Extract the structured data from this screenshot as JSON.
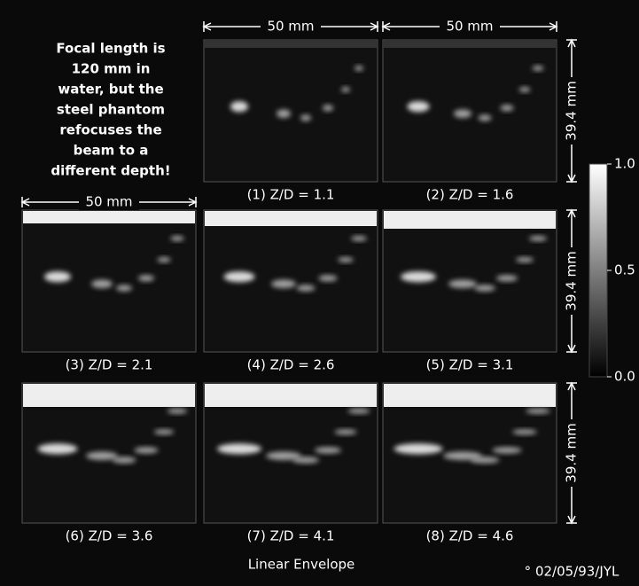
{
  "annotation": [
    "Focal length is",
    "120 mm in",
    "water, but the",
    "steel phantom",
    "refocuses the",
    "beam to a",
    "different depth!"
  ],
  "width_labels": [
    "50 mm",
    "50 mm",
    "50 mm"
  ],
  "depth_labels": [
    "39.4 mm",
    "39.4 mm",
    "39.4 mm"
  ],
  "panels": [
    {
      "caption": "(1) Z/D = 1.1"
    },
    {
      "caption": "(2) Z/D = 1.6"
    },
    {
      "caption": "(3) Z/D = 2.1"
    },
    {
      "caption": "(4) Z/D = 2.6"
    },
    {
      "caption": "(5) Z/D = 3.1"
    },
    {
      "caption": "(6) Z/D = 3.6"
    },
    {
      "caption": "(7) Z/D = 4.1"
    },
    {
      "caption": "(8) Z/D = 4.6"
    }
  ],
  "colorbar": {
    "ticks": [
      "1.0",
      "0.5",
      "0.0"
    ]
  },
  "footer": "Linear Envelope",
  "credit": "° 02/05/93/JYL"
}
